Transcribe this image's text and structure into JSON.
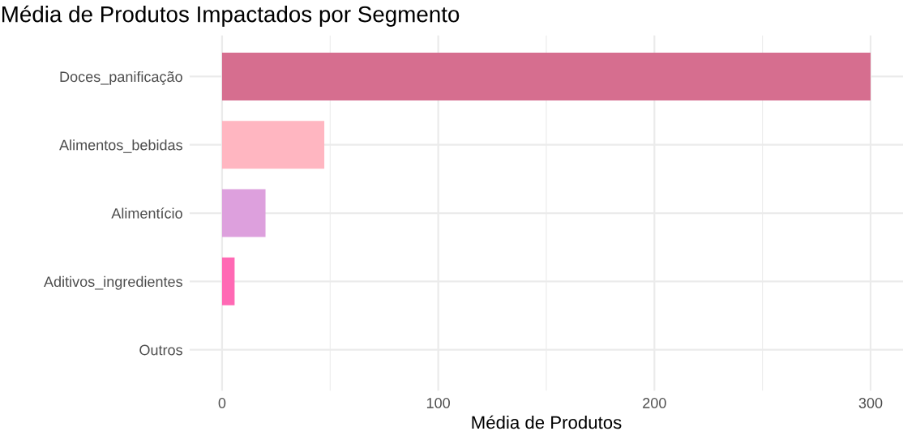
{
  "chart_data": {
    "type": "bar",
    "orientation": "horizontal",
    "title": "Média de Produtos Impactados por Segmento",
    "xlabel": "Média de Produtos",
    "categories": [
      "Doces_panificação",
      "Alimentos_bebidas",
      "Alimentício",
      "Aditivos_ingredientes",
      "Outros"
    ],
    "values": [
      300,
      47.3,
      20.1,
      5.8,
      0
    ],
    "colors": [
      "#d66e8f",
      "#ffb6c1",
      "#dda0dd",
      "#ff69b4",
      "#c71585"
    ],
    "xlim": [
      -15,
      315
    ],
    "xticks": [
      0,
      {
        "value": 50,
        "label": null
      },
      100,
      {
        "value": 150,
        "label": null
      },
      200,
      {
        "value": 250,
        "label": null
      },
      300
    ],
    "grid": true
  }
}
